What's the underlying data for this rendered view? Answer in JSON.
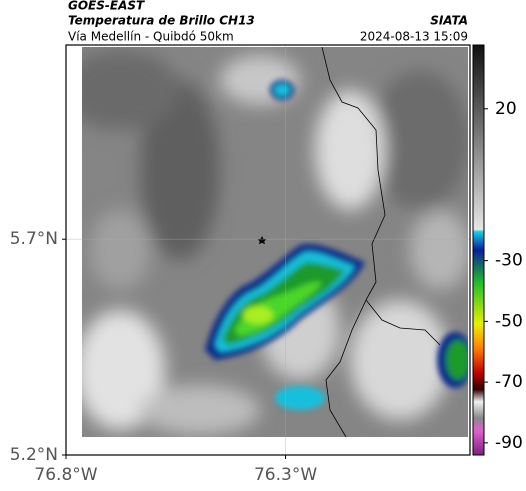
{
  "header": {
    "agency": "GOES-EAST",
    "product": "Temperatura de Brillo CH13",
    "region": "Vía Medellín - Quibdó 50km",
    "source": "SIATA",
    "datetime": "2024-08-13 15:09"
  },
  "map": {
    "xlim": [
      -76.8,
      -75.88
    ],
    "ylim": [
      5.2,
      6.15
    ],
    "xticks": [
      {
        "value": -76.8,
        "label": "76.8°W"
      },
      {
        "value": -76.3,
        "label": "76.3°W"
      }
    ],
    "yticks": [
      {
        "value": 5.7,
        "label": "5.7°N"
      },
      {
        "value": 5.2,
        "label": "5.2°N"
      }
    ],
    "grid": true
  },
  "colorbar": {
    "lim": [
      41,
      -94
    ],
    "ticks": [
      20,
      -30,
      -50,
      -70,
      -90
    ]
  }
}
